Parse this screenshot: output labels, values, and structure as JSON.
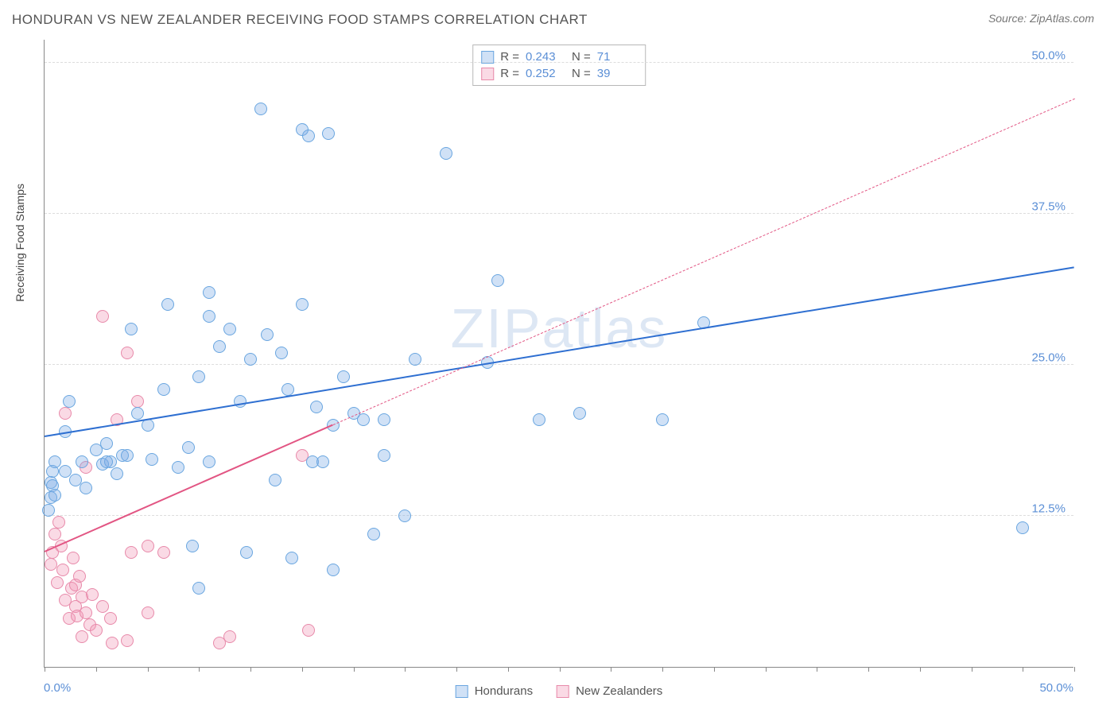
{
  "title": "HONDURAN VS NEW ZEALANDER RECEIVING FOOD STAMPS CORRELATION CHART",
  "source": "Source: ZipAtlas.com",
  "watermark": "ZIPatlas",
  "y_axis_title": "Receiving Food Stamps",
  "chart": {
    "type": "scatter",
    "xlim": [
      0,
      50
    ],
    "ylim": [
      0,
      52
    ],
    "x_ticks_minor_step": 2.5,
    "x_label_min": "0.0%",
    "x_label_max": "50.0%",
    "y_grid": [
      {
        "value": 12.5,
        "label": "12.5%"
      },
      {
        "value": 25.0,
        "label": "25.0%"
      },
      {
        "value": 37.5,
        "label": "37.5%"
      },
      {
        "value": 50.0,
        "label": "50.0%"
      }
    ],
    "grid_color": "#dddddd",
    "background_color": "#ffffff",
    "axis_color": "#888888",
    "label_color": "#5b8fd6"
  },
  "series": {
    "hondurans": {
      "label": "Hondurans",
      "color_fill": "rgba(120,170,230,0.35)",
      "color_stroke": "#6aa6e0",
      "trend_color": "#2e6fd1",
      "r": 0.243,
      "n": 71,
      "marker_radius": 8,
      "trend": {
        "x1": 0,
        "y1": 19.0,
        "x2": 50,
        "y2": 33.0,
        "dash_after_x": 50
      },
      "points": [
        [
          0.3,
          14.0
        ],
        [
          0.3,
          15.3
        ],
        [
          0.4,
          16.2
        ],
        [
          0.2,
          13.0
        ],
        [
          0.5,
          17.0
        ],
        [
          0.4,
          15.0
        ],
        [
          0.5,
          14.2
        ],
        [
          1.0,
          16.2
        ],
        [
          1.2,
          22.0
        ],
        [
          1.5,
          15.5
        ],
        [
          1.8,
          17.0
        ],
        [
          1.0,
          19.5
        ],
        [
          2.5,
          18.0
        ],
        [
          2.8,
          16.8
        ],
        [
          2.0,
          14.8
        ],
        [
          3.2,
          17.0
        ],
        [
          3.0,
          18.5
        ],
        [
          3.5,
          16.0
        ],
        [
          3.8,
          17.5
        ],
        [
          4.2,
          28.0
        ],
        [
          4.5,
          21.0
        ],
        [
          5.0,
          20.0
        ],
        [
          5.2,
          17.2
        ],
        [
          5.8,
          23.0
        ],
        [
          6.0,
          30.0
        ],
        [
          6.5,
          16.5
        ],
        [
          7.0,
          18.2
        ],
        [
          7.5,
          24.0
        ],
        [
          7.2,
          10.0
        ],
        [
          7.5,
          6.5
        ],
        [
          8.0,
          29.0
        ],
        [
          8.0,
          31.0
        ],
        [
          8.5,
          26.5
        ],
        [
          8.0,
          17.0
        ],
        [
          9.0,
          28.0
        ],
        [
          9.5,
          22.0
        ],
        [
          9.8,
          9.5
        ],
        [
          10.0,
          25.5
        ],
        [
          10.5,
          46.2
        ],
        [
          10.8,
          27.5
        ],
        [
          11.2,
          15.5
        ],
        [
          11.5,
          26.0
        ],
        [
          11.8,
          23.0
        ],
        [
          12.0,
          9.0
        ],
        [
          12.5,
          44.5
        ],
        [
          12.8,
          44.0
        ],
        [
          12.5,
          30.0
        ],
        [
          13.0,
          17.0
        ],
        [
          13.2,
          21.5
        ],
        [
          13.5,
          17.0
        ],
        [
          13.8,
          44.2
        ],
        [
          14.0,
          8.0
        ],
        [
          14.5,
          24.0
        ],
        [
          14.0,
          20.0
        ],
        [
          15.0,
          21.0
        ],
        [
          15.5,
          20.5
        ],
        [
          16.0,
          11.0
        ],
        [
          16.5,
          17.5
        ],
        [
          16.5,
          20.5
        ],
        [
          17.5,
          12.5
        ],
        [
          18.0,
          25.5
        ],
        [
          19.5,
          42.5
        ],
        [
          21.5,
          25.2
        ],
        [
          22.0,
          32.0
        ],
        [
          24.0,
          20.5
        ],
        [
          26.0,
          21.0
        ],
        [
          30.0,
          20.5
        ],
        [
          32.0,
          28.5
        ],
        [
          47.5,
          11.5
        ],
        [
          3.0,
          17.0
        ],
        [
          4.0,
          17.5
        ]
      ]
    },
    "new_zealanders": {
      "label": "New Zealanders",
      "color_fill": "rgba(240,150,180,0.35)",
      "color_stroke": "#e88aaa",
      "trend_color": "#e25583",
      "r": 0.252,
      "n": 39,
      "marker_radius": 8,
      "trend": {
        "x1": 0,
        "y1": 9.5,
        "x2": 14,
        "y2": 20.0,
        "dash_to_x": 50,
        "dash_to_y": 47.0
      },
      "points": [
        [
          0.3,
          8.5
        ],
        [
          0.4,
          9.5
        ],
        [
          0.5,
          11.0
        ],
        [
          0.6,
          7.0
        ],
        [
          0.8,
          10.0
        ],
        [
          0.7,
          12.0
        ],
        [
          0.9,
          8.0
        ],
        [
          1.0,
          5.5
        ],
        [
          1.0,
          21.0
        ],
        [
          1.2,
          4.0
        ],
        [
          1.3,
          6.5
        ],
        [
          1.4,
          9.0
        ],
        [
          1.5,
          5.0
        ],
        [
          1.5,
          6.8
        ],
        [
          1.6,
          4.2
        ],
        [
          1.7,
          7.5
        ],
        [
          1.8,
          5.8
        ],
        [
          1.8,
          2.5
        ],
        [
          2.0,
          4.5
        ],
        [
          2.0,
          16.5
        ],
        [
          2.2,
          3.5
        ],
        [
          2.3,
          6.0
        ],
        [
          2.5,
          3.0
        ],
        [
          2.8,
          5.0
        ],
        [
          2.8,
          29.0
        ],
        [
          3.2,
          4.0
        ],
        [
          3.3,
          2.0
        ],
        [
          3.5,
          20.5
        ],
        [
          4.0,
          2.2
        ],
        [
          4.0,
          26.0
        ],
        [
          4.2,
          9.5
        ],
        [
          4.5,
          22.0
        ],
        [
          5.0,
          10.0
        ],
        [
          5.0,
          4.5
        ],
        [
          5.8,
          9.5
        ],
        [
          8.5,
          2.0
        ],
        [
          9.0,
          2.5
        ],
        [
          12.5,
          17.5
        ],
        [
          12.8,
          3.0
        ]
      ]
    }
  },
  "legend_top": {
    "r_label": "R =",
    "n_label": "N ="
  }
}
